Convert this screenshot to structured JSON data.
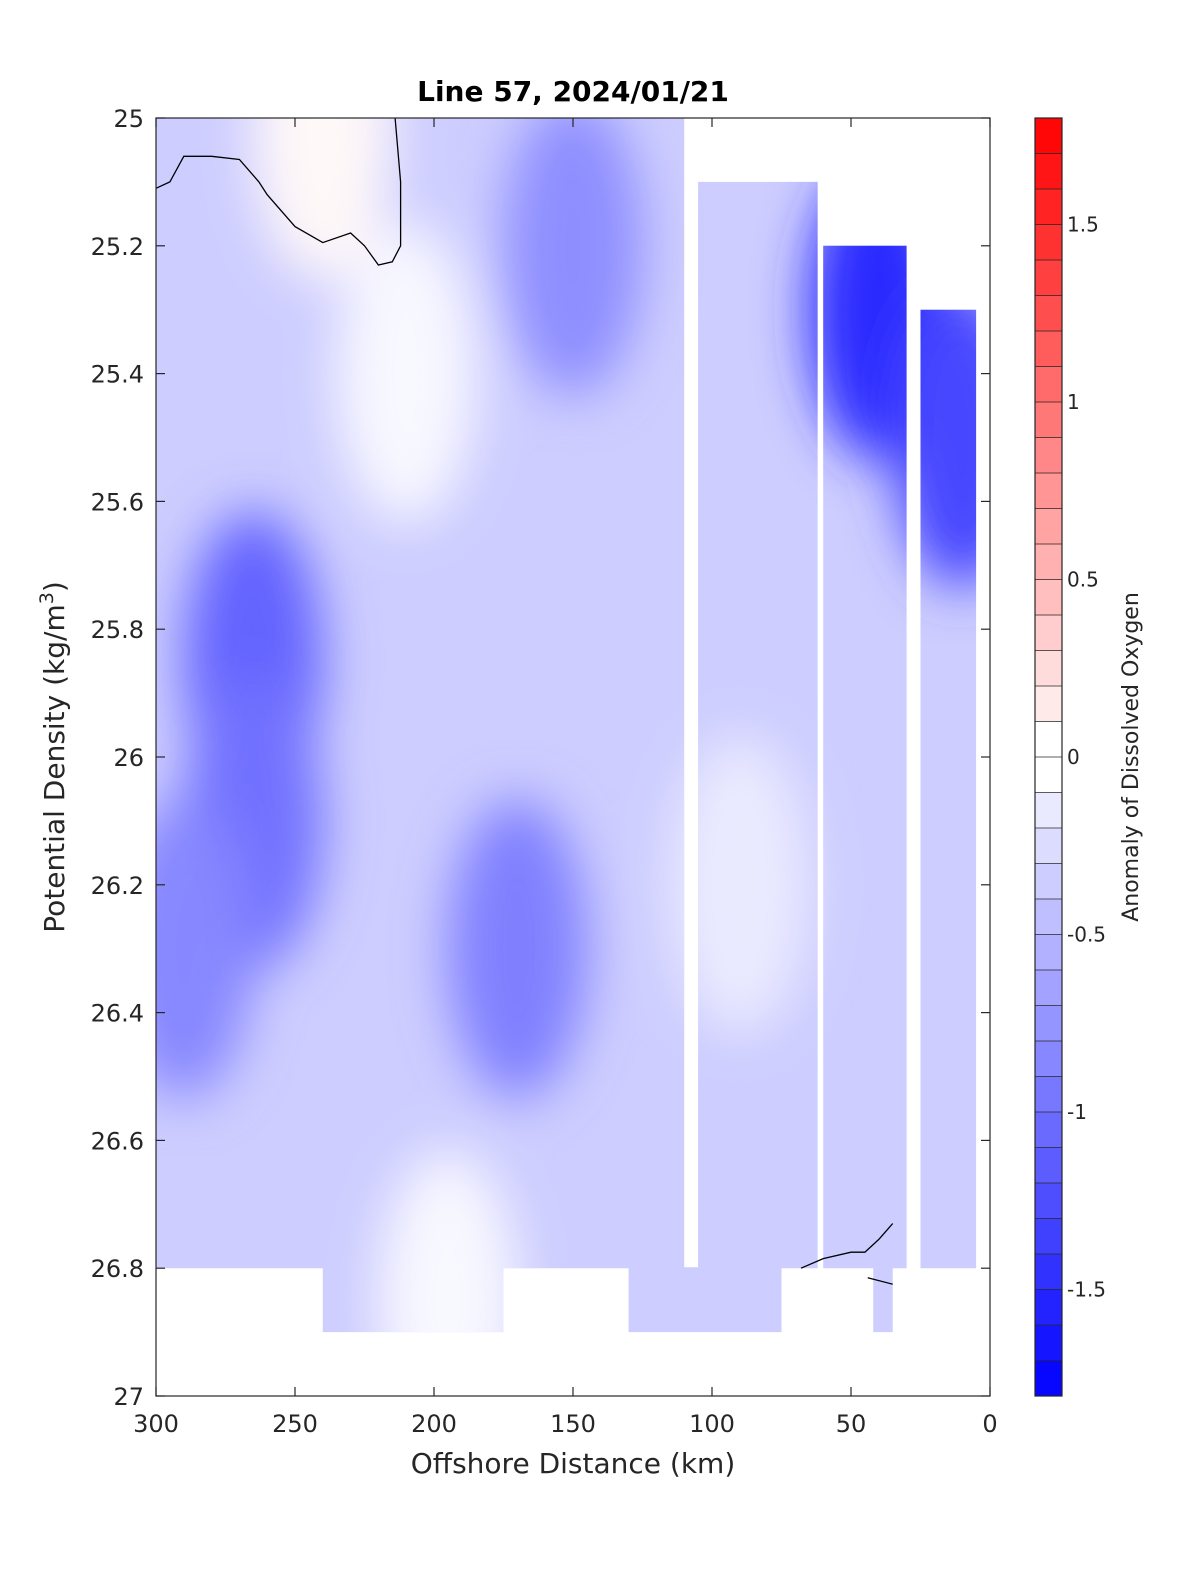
{
  "chart_data": {
    "type": "heatmap",
    "subtype": "filled-contour",
    "title": "Line 57, 2024/01/21",
    "xlabel": "Offshore Distance (km)",
    "ylabel_main": "Potential Density (kg/m",
    "ylabel_sup": "3",
    "ylabel_close": ")",
    "xlim": [
      300,
      0
    ],
    "x_reversed": true,
    "ylim": [
      25,
      27
    ],
    "y_reversed": true,
    "grid": false,
    "x_ticks": [
      300,
      250,
      200,
      150,
      100,
      50,
      0
    ],
    "x_tick_labels": [
      "300",
      "250",
      "200",
      "150",
      "100",
      "50",
      "0"
    ],
    "y_ticks": [
      25,
      25.2,
      25.4,
      25.6,
      25.8,
      26,
      26.2,
      26.4,
      26.6,
      26.8,
      27
    ],
    "y_tick_labels": [
      "25",
      "25.2",
      "25.4",
      "25.6",
      "25.8",
      "26",
      "26.2",
      "26.4",
      "26.6",
      "26.8",
      "27"
    ],
    "colorbar": {
      "label": "Anomaly of Dissolved Oxygen",
      "range": [
        -1.8,
        1.8
      ],
      "step": 0.1,
      "ticks": [
        1.5,
        1,
        0.5,
        0,
        -0.5,
        -1,
        -1.5
      ],
      "tick_labels": [
        "1.5",
        "1",
        "0.5",
        "0",
        "-0.5",
        "-1",
        "-1.5"
      ],
      "colormap": "blue-white-red",
      "neg_color": "#0000ff",
      "pos_color": "#ff0000",
      "mid_color": "#ffffff"
    },
    "data_coverage": {
      "full_depth_band": [
        25,
        26.8
      ],
      "top_limit_by_distance": [
        {
          "x_range": [
            300,
            110
          ],
          "top": 25
        },
        {
          "x_range": [
            105,
            62
          ],
          "top": 25.1
        },
        {
          "x_range": [
            60,
            30
          ],
          "top": 25.2
        },
        {
          "x_range": [
            25,
            5
          ],
          "top": 25.3
        }
      ],
      "deep_strips": [
        {
          "x_range": [
            240,
            175
          ],
          "bottom": 26.9
        },
        {
          "x_range": [
            130,
            75
          ],
          "bottom": 26.9
        },
        {
          "x_range": [
            42,
            35
          ],
          "bottom": 26.9
        }
      ]
    },
    "features": [
      {
        "x": 265,
        "y": 25.85,
        "value": -1.1
      },
      {
        "x": 265,
        "y": 26.1,
        "value": -1.0
      },
      {
        "x": 290,
        "y": 26.3,
        "value": -0.85
      },
      {
        "x": 170,
        "y": 26.3,
        "value": -0.9
      },
      {
        "x": 150,
        "y": 25.2,
        "value": -0.8
      },
      {
        "x": 40,
        "y": 25.3,
        "value": -1.5
      },
      {
        "x": 10,
        "y": 25.5,
        "value": -1.3
      },
      {
        "x": 90,
        "y": 26.2,
        "value": -0.15
      },
      {
        "x": 240,
        "y": 25.02,
        "value": 0.05
      },
      {
        "x": 210,
        "y": 25.4,
        "value": -0.05
      },
      {
        "x": 195,
        "y": 26.85,
        "value": -0.05
      }
    ],
    "zero_contours": [
      {
        "name": "upper-left",
        "points": [
          [
            300,
            25.11
          ],
          [
            295,
            25.1
          ],
          [
            290,
            25.06
          ],
          [
            280,
            25.06
          ],
          [
            270,
            25.065
          ],
          [
            263,
            25.1
          ],
          [
            260,
            25.12
          ],
          [
            250,
            25.17
          ],
          [
            240,
            25.195
          ],
          [
            230,
            25.18
          ],
          [
            225,
            25.2
          ],
          [
            220,
            25.23
          ],
          [
            215,
            25.225
          ],
          [
            212,
            25.2
          ],
          [
            212,
            25.1
          ],
          [
            214,
            25
          ]
        ]
      },
      {
        "name": "lower-right-1",
        "points": [
          [
            68,
            26.8
          ],
          [
            60,
            26.785
          ],
          [
            50,
            26.775
          ],
          [
            45,
            26.775
          ],
          [
            40,
            26.755
          ],
          [
            35,
            26.73
          ]
        ]
      },
      {
        "name": "lower-right-2",
        "points": [
          [
            44,
            26.815
          ],
          [
            35,
            26.825
          ]
        ]
      }
    ]
  }
}
